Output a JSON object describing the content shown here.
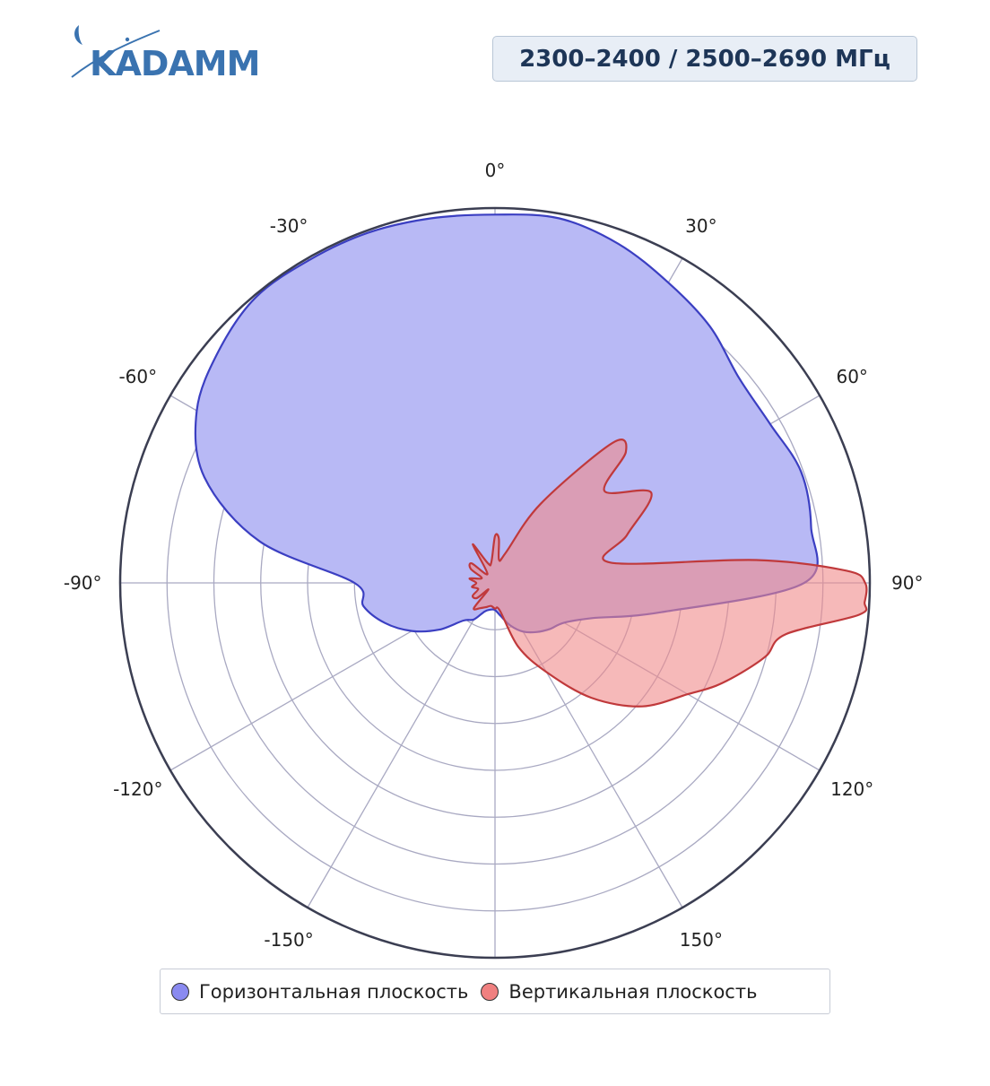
{
  "header": {
    "logo_text": "KADAMM",
    "frequency_label": "2300–2400 / 2500–2690 МГц"
  },
  "colors": {
    "horizontal_fill": "#b8b9f5",
    "horizontal_line": "#3b3fc2",
    "vertical_fill": "#f08a8a",
    "vertical_line": "#c0393b",
    "grid": "#a9a9c2",
    "outer_ring": "#3b3e52"
  },
  "legend": {
    "horizontal_label": "Горизонтальная плоскость",
    "vertical_label": "Вертикальная плоскость"
  },
  "chart_data": {
    "type": "polar-area",
    "angular_axis": {
      "direction": "clockwise",
      "zero": "top",
      "tick_labels": [
        "0°",
        "30°",
        "60°",
        "90°",
        "120°",
        "150°",
        "-150°",
        "-120°",
        "-90°",
        "-60°",
        "-30°"
      ]
    },
    "radial_axis": {
      "range": [
        0,
        8
      ],
      "rings": [
        1,
        2,
        3,
        4,
        5,
        6,
        7
      ],
      "tick_labels_shown": false
    },
    "series": [
      {
        "name": "Горизонтальная плоскость",
        "angles": [
          0,
          10,
          20,
          30,
          40,
          50,
          60,
          70,
          80,
          90,
          100,
          110,
          120,
          130,
          140,
          150,
          160,
          170,
          180,
          190,
          200,
          210,
          220,
          230,
          240,
          250,
          260,
          270,
          280,
          290,
          300,
          310,
          320,
          330,
          340,
          350
        ],
        "r": [
          7.86,
          7.9,
          7.7,
          7.4,
          7.14,
          6.8,
          6.78,
          6.95,
          6.85,
          6.6,
          3.6,
          2.2,
          1.7,
          1.53,
          1.37,
          1.2,
          0.97,
          0.72,
          0.58,
          0.58,
          0.65,
          0.9,
          1.05,
          1.55,
          2.05,
          2.5,
          2.85,
          3.0,
          5.1,
          6.6,
          7.35,
          7.7,
          7.95,
          7.95,
          7.95,
          7.9
        ]
      },
      {
        "name": "Вертикальная плоскость",
        "angles": [
          0,
          5,
          10,
          20,
          30,
          40,
          45,
          50,
          60,
          70,
          80,
          85,
          88,
          90,
          93,
          95,
          100,
          105,
          110,
          115,
          120,
          130,
          140,
          150,
          160,
          170,
          180,
          190,
          200,
          210,
          220,
          225,
          230,
          240,
          250,
          260,
          270,
          280,
          290,
          300,
          310,
          320,
          330,
          340,
          350
        ],
        "r": [
          1.0,
          0.95,
          0.5,
          0.7,
          1.95,
          3.9,
          3.95,
          3.05,
          3.85,
          3.0,
          2.5,
          5.6,
          7.5,
          7.9,
          7.9,
          7.8,
          6.3,
          6.0,
          5.6,
          5.2,
          4.75,
          4.1,
          3.2,
          2.2,
          1.45,
          0.6,
          0.55,
          0.5,
          0.55,
          0.62,
          0.7,
          0.2,
          0.5,
          0.55,
          0.38,
          0.5,
          0.4,
          0.55,
          0.3,
          0.6,
          0.65,
          0.25,
          0.95,
          0.45,
          0.45
        ]
      }
    ]
  }
}
